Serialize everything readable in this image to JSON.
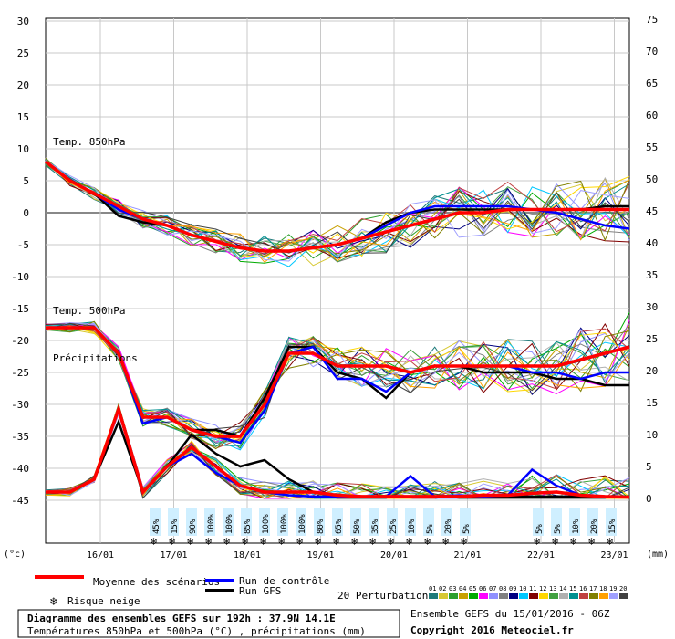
{
  "chart_data": {
    "type": "line",
    "left_axis_ticks": [
      30,
      25,
      20,
      15,
      10,
      5,
      0,
      -5,
      -10,
      -15,
      -20,
      -25,
      -30,
      -35,
      -40,
      -45
    ],
    "right_axis_ticks": [
      75,
      70,
      65,
      60,
      55,
      50,
      45,
      40,
      35,
      30,
      25,
      20,
      15,
      10,
      5,
      0
    ],
    "x_labels": [
      "16/01",
      "17/01",
      "18/01",
      "19/01",
      "20/01",
      "21/01",
      "22/01",
      "23/01"
    ],
    "left_unit": "(°c)",
    "right_unit": "(mm)",
    "panel_labels": {
      "t850": "Temp. 850hPa",
      "t500": "Temp. 500hPa",
      "precip": "Précipitations"
    },
    "snow_risk": [
      "45%",
      "15%",
      "90%",
      "100%",
      "100%",
      "85%",
      "100%",
      "100%",
      "100%",
      "80%",
      "65%",
      "50%",
      "35%",
      "25%",
      "10%",
      "5%",
      "20%",
      "5%",
      "5%",
      "5%",
      "10%",
      "20%",
      "15%"
    ],
    "series": [
      {
        "name": "Moyenne des scénarios",
        "color": "#ff0000",
        "t850": [
          8,
          5,
          3,
          1,
          -1,
          -2,
          -3.5,
          -4.5,
          -5.5,
          -6,
          -6,
          -5.5,
          -5,
          -4,
          -3,
          -2,
          -1,
          0,
          0,
          0.5,
          0.5,
          0.5,
          0.5,
          0.5,
          0.5
        ],
        "t500": [
          -18,
          -18,
          -18,
          -22,
          -32,
          -32,
          -34,
          -35,
          -35,
          -30,
          -22,
          -22,
          -24,
          -24,
          -24,
          -25,
          -24,
          -24,
          -24,
          -24,
          -24,
          -24,
          -23,
          -22,
          -21
        ],
        "precip": [
          1,
          1,
          3,
          14,
          1,
          5,
          8,
          5,
          2,
          1,
          1,
          1,
          0.5,
          0.3,
          0.3,
          0.3,
          0.3,
          0.3,
          0.5,
          0.5,
          0.8,
          1,
          0.5,
          0.3,
          0.2
        ]
      },
      {
        "name": "Run de contrôle",
        "color": "#0000ff",
        "t850": [
          8,
          5,
          3,
          0.5,
          -1,
          -2,
          -3.5,
          -4.5,
          -5.5,
          -6,
          -6,
          -5.5,
          -5,
          -4,
          -2,
          0,
          1,
          1,
          1,
          1,
          0.5,
          0,
          -1,
          -2,
          -2.5
        ],
        "t500": [
          -18,
          -18,
          -18,
          -22,
          -33,
          -32,
          -34,
          -35,
          -36,
          -31,
          -22,
          -21,
          -26,
          -26,
          -28,
          -25,
          -24,
          -24,
          -24,
          -24,
          -25,
          -25,
          -26,
          -25,
          -25
        ],
        "precip": [
          1,
          1,
          3,
          14,
          1,
          5,
          7,
          4,
          2,
          1,
          0.5,
          0.3,
          0.3,
          0.3,
          0.3,
          3.5,
          0.3,
          0.5,
          0.3,
          0.5,
          4.5,
          2,
          0.5,
          0.3,
          0.2
        ]
      },
      {
        "name": "Run GFS",
        "color": "#000000",
        "t850": [
          8,
          5,
          3,
          -0.5,
          -1.5,
          -2,
          -3.5,
          -4.5,
          -5.5,
          -6,
          -6,
          -5.5,
          -5,
          -4,
          -1.5,
          0,
          0.5,
          0.5,
          0.5,
          0.5,
          0.5,
          0.5,
          0.5,
          1,
          1
        ],
        "t500": [
          -18,
          -18,
          -18,
          -22,
          -32,
          -32,
          -34,
          -34,
          -35,
          -29,
          -21,
          -21,
          -25,
          -26,
          -29,
          -25,
          -24,
          -24,
          -25,
          -25,
          -25,
          -26,
          -26,
          -27,
          -27
        ],
        "precip": [
          1,
          1,
          3,
          12,
          1,
          5,
          10,
          7,
          5,
          6,
          3,
          1,
          0.5,
          0.3,
          0.3,
          0.3,
          0.3,
          0.3,
          0.3,
          0.3,
          0.3,
          0.3,
          0.3,
          0.3,
          0.3
        ]
      }
    ],
    "perturbations": 20
  },
  "legend": {
    "mean_label": "Moyenne des scénarios",
    "control_label": "Run de contrôle",
    "gfs_label": "Run GFS",
    "snow_label": "Risque neige",
    "pert_label": "20 Perturbations",
    "pert_numbers": [
      "01",
      "02",
      "03",
      "04",
      "05",
      "06",
      "07",
      "08",
      "09",
      "10",
      "11",
      "12",
      "13",
      "14",
      "15",
      "16",
      "17",
      "18",
      "19",
      "20"
    ],
    "pert_colors": [
      "#1e7a7a",
      "#d7c832",
      "#2ca02c",
      "#c8a000",
      "#00aa00",
      "#ff00ff",
      "#9090ff",
      "#808080",
      "#000080",
      "#00c8ff",
      "#800000",
      "#ffd700",
      "#40a040",
      "#b0b0b0",
      "#009090",
      "#c04040",
      "#808000",
      "#ffa000",
      "#a0a0ff",
      "#404040"
    ]
  },
  "footer": {
    "title": "Diagramme des ensembles GEFS sur 192h : 37.9N 14.1E",
    "subtitle": "Températures 850hPa et 500hPa (°C) , précipitations (mm)",
    "run": "Ensemble GEFS du 15/01/2016 - 06Z",
    "copyright": "Copyright 2016 Meteociel.fr"
  }
}
